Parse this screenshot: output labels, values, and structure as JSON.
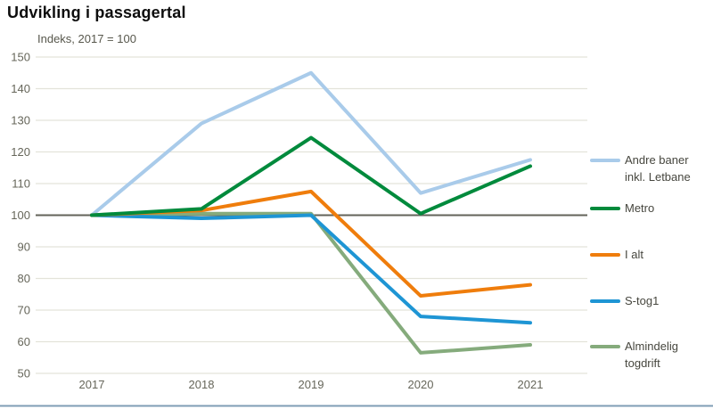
{
  "title": "Udvikling i passagertal",
  "subtitle": "Indeks, 2017 = 100",
  "chart_data": {
    "type": "line",
    "x": [
      2017,
      2018,
      2019,
      2020,
      2021
    ],
    "xticklabels": [
      "2017",
      "2018",
      "2019",
      "2020",
      "2021"
    ],
    "series": [
      {
        "name": "Andre baner inkl. Letbane",
        "color": "#a9cbea",
        "values": [
          100,
          129,
          145,
          107,
          117.5
        ]
      },
      {
        "name": "Almindelig togdrift",
        "color": "#85ab7c",
        "values": [
          100,
          100.5,
          100.5,
          56.5,
          59
        ]
      },
      {
        "name": "S-tog1",
        "color": "#1e95d4",
        "values": [
          100,
          99,
          100,
          68,
          66
        ]
      },
      {
        "name": "I alt",
        "color": "#ef7d0c",
        "values": [
          100,
          101.5,
          107.5,
          74.5,
          78
        ]
      },
      {
        "name": "Metro",
        "color": "#008a3c",
        "values": [
          100,
          102,
          124.5,
          100.5,
          115.5
        ]
      }
    ],
    "ylim": [
      50,
      150
    ],
    "ytick_step": 10,
    "yticklabels": [
      "50",
      "60",
      "70",
      "80",
      "90",
      "100",
      "110",
      "120",
      "130",
      "140",
      "150"
    ],
    "baseline": 100,
    "grid": true,
    "legend_position": "right"
  },
  "legend": {
    "items": [
      {
        "name": "Andre baner inkl. Letbane",
        "lines": [
          "Andre baner",
          "inkl. Letbane"
        ],
        "color": "#a9cbea"
      },
      {
        "name": "Metro",
        "lines": [
          "Metro"
        ],
        "color": "#008a3c"
      },
      {
        "name": "I alt",
        "lines": [
          "I alt"
        ],
        "color": "#ef7d0c"
      },
      {
        "name": "S-tog1",
        "lines": [
          "S-tog1"
        ],
        "color": "#1e95d4"
      },
      {
        "name": "Almindelig togdrift",
        "lines": [
          "Almindelig",
          "togdrift"
        ],
        "color": "#85ab7c"
      }
    ]
  },
  "colors": {
    "gridline": "#e3e3da",
    "baseline_line": "#63635a",
    "axis_text": "#66665a",
    "bottom_border": "#7f9db5"
  }
}
